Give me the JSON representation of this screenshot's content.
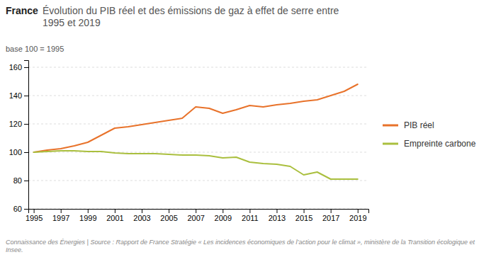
{
  "chart_data": {
    "type": "line",
    "title": "France",
    "subtitle": "Évolution du PIB réel et des émissions de gaz à effet de serre entre\n1995 et 2019",
    "ylabel": "base 100 = 1995",
    "footnote": "Connaissance des Énergies | Source : Rapport de France Stratégie « Les incidences économiques de l’action pour le climat », ministère de la Transition écologique et Insee.",
    "x": [
      1995,
      1996,
      1997,
      1998,
      1999,
      2000,
      2001,
      2002,
      2003,
      2004,
      2005,
      2006,
      2007,
      2008,
      2009,
      2010,
      2011,
      2012,
      2013,
      2014,
      2015,
      2016,
      2017,
      2018,
      2019
    ],
    "series": [
      {
        "name": "PIB réel",
        "color": "#E8722A",
        "values": [
          100,
          101.5,
          102.5,
          104.5,
          107,
          112,
          117,
          118,
          119.5,
          121,
          122.5,
          124,
          132,
          131,
          127.5,
          130,
          133,
          132,
          133.5,
          134.5,
          136,
          137,
          140,
          143,
          148
        ]
      },
      {
        "name": "Empreinte carbone",
        "color": "#AABF3E",
        "values": [
          100,
          100.5,
          101,
          101,
          100.5,
          100.5,
          99.5,
          99,
          99,
          99,
          98.5,
          98,
          98,
          97.5,
          96,
          96.5,
          93,
          92,
          91.5,
          90,
          84,
          86,
          81,
          81,
          81
        ]
      }
    ],
    "xlim": [
      1994.6,
      2019.8
    ],
    "xticks": [
      1995,
      1997,
      1999,
      2001,
      2003,
      2005,
      2007,
      2009,
      2011,
      2013,
      2015,
      2017,
      2019
    ],
    "ylim": [
      60,
      165
    ],
    "yticks": [
      60,
      80,
      100,
      120,
      140,
      160
    ],
    "grid": true,
    "legend": "right"
  }
}
